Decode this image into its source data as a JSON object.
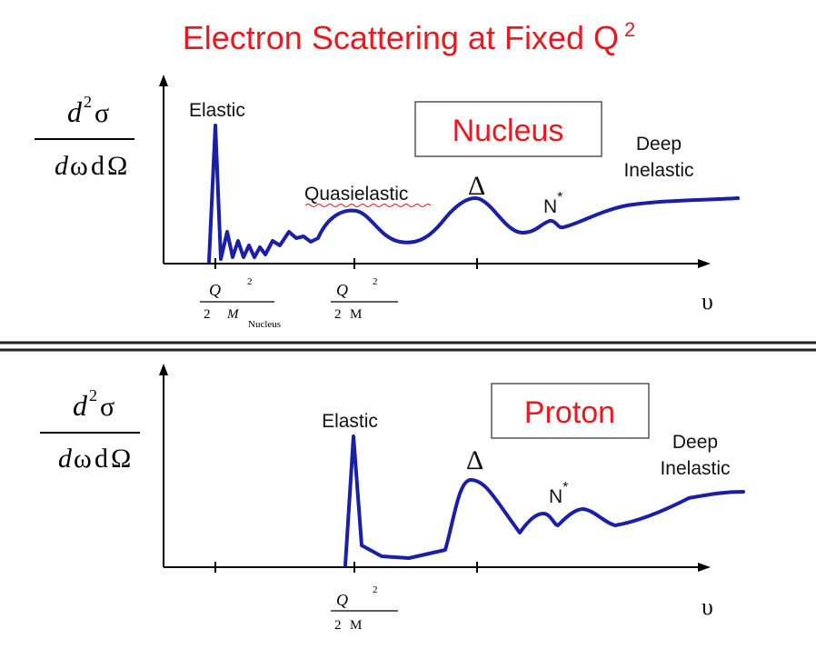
{
  "title": {
    "text": "Electron Scattering at Fixed Q",
    "sup": "2"
  },
  "colors": {
    "accent": "#e8191f",
    "curve": "#1a1fa6",
    "axis": "#000000",
    "box_border": "#555555"
  },
  "panels": [
    {
      "id": "nucleus",
      "ylabel": {
        "num_d": "d",
        "num_exp": "2",
        "num_sym": "σ",
        "den_d": "d",
        "den_omega": "ω",
        "den_d2": "d",
        "den_Omega": "Ω"
      },
      "box_label": "Nucleus",
      "labels": {
        "elastic": "Elastic",
        "quasielastic": "Quasielastic",
        "delta": "Δ",
        "nstar": "N",
        "nstar_sup": "*",
        "deep1": "Deep",
        "deep2": "Inelastic"
      },
      "xticks": [
        {
          "num": "Q",
          "num_exp": "2",
          "den_a": "2",
          "den_b": "M",
          "den_sub": "Nucleus"
        },
        {
          "num": "Q",
          "num_exp": "2",
          "den_a": "2",
          "den_b": "M",
          "den_sub": ""
        }
      ],
      "xlabel": "υ"
    },
    {
      "id": "proton",
      "ylabel": {
        "num_d": "d",
        "num_exp": "2",
        "num_sym": "σ",
        "den_d": "d",
        "den_omega": "ω",
        "den_d2": "d",
        "den_Omega": "Ω"
      },
      "box_label": "Proton",
      "labels": {
        "elastic": "Elastic",
        "delta": "Δ",
        "nstar": "N",
        "nstar_sup": "*",
        "deep1": "Deep",
        "deep2": "Inelastic"
      },
      "xticks": [
        {
          "num": "Q",
          "num_exp": "2",
          "den_a": "2",
          "den_b": "M",
          "den_sub": ""
        }
      ],
      "xlabel": "υ"
    }
  ]
}
